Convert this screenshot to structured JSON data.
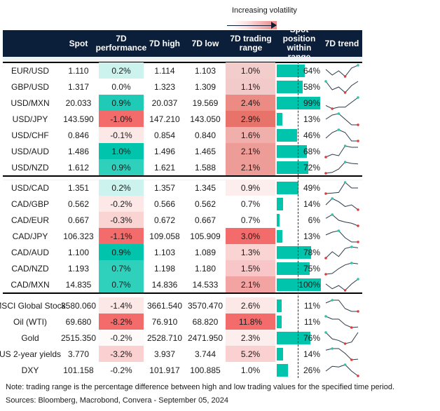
{
  "legend": {
    "label": "Increasing volatility"
  },
  "headers": {
    "spot": "Spot",
    "perf_1": "7D",
    "perf_2": "performance",
    "high": "7D high",
    "low": "7D low",
    "range_1": "7D trading",
    "range_2": "range",
    "pos_1": "Spot position",
    "pos_2": "within range",
    "trend": "7D trend"
  },
  "colors": {
    "header_bg": "#0b1f3a",
    "position_bar": "#00c4ac",
    "max_marker": "#2ec4a8",
    "min_marker": "#e03b3b"
  },
  "groups": [
    {
      "rows": [
        {
          "name": "EUR/USD",
          "spot": "1.110",
          "perf": "0.2%",
          "perf_color": "#cdf3ef",
          "high": "1.114",
          "low": "1.103",
          "range": "1.0%",
          "range_color": "#f3cccc",
          "position": 64,
          "position_label": "64%",
          "trend": [
            35,
            15,
            30,
            10,
            40,
            50
          ]
        },
        {
          "name": "GBP/USD",
          "spot": "1.317",
          "perf": "0.0%",
          "perf_color": "#ffffff",
          "high": "1.323",
          "low": "1.309",
          "range": "1.1%",
          "range_color": "#f3caca",
          "position": 58,
          "position_label": "58%",
          "trend": [
            50,
            20,
            30,
            10,
            35,
            50
          ]
        },
        {
          "name": "USD/MXN",
          "spot": "20.033",
          "perf": "0.9%",
          "perf_color": "#1fcbb6",
          "high": "20.037",
          "low": "19.569",
          "range": "2.4%",
          "range_color": "#ec8a84",
          "position": 99,
          "position_label": "99%",
          "trend": [
            20,
            10,
            15,
            15,
            30,
            45
          ]
        },
        {
          "name": "USD/JPY",
          "spot": "143.590",
          "perf": "-1.0%",
          "perf_color": "#f46b6b",
          "high": "147.210",
          "low": "143.050",
          "range": "2.9%",
          "range_color": "#e8736b",
          "position": 13,
          "position_label": "13%",
          "trend": [
            30,
            45,
            50,
            30,
            10,
            10
          ]
        },
        {
          "name": "USD/CHF",
          "spot": "0.846",
          "perf": "-0.1%",
          "perf_color": "#fde8e8",
          "high": "0.854",
          "low": "0.840",
          "range": "1.6%",
          "range_color": "#f0afab",
          "position": 46,
          "position_label": "46%",
          "trend": [
            20,
            40,
            50,
            40,
            10,
            10
          ]
        },
        {
          "name": "USD/AUD",
          "spot": "1.486",
          "perf": "1.0%",
          "perf_color": "#00c4ac",
          "high": "1.496",
          "low": "1.465",
          "range": "2.1%",
          "range_color": "#ee9c97",
          "position": 68,
          "position_label": "68%",
          "trend": [
            10,
            20,
            15,
            50,
            45,
            45
          ]
        },
        {
          "name": "USD/NZD",
          "spot": "1.612",
          "perf": "0.9%",
          "perf_color": "#2fd1bd",
          "high": "1.621",
          "low": "1.588",
          "range": "2.1%",
          "range_color": "#ee9c97",
          "position": 72,
          "position_label": "72%",
          "trend": [
            5,
            8,
            20,
            45,
            40,
            38
          ]
        }
      ]
    },
    {
      "rows": [
        {
          "name": "USD/CAD",
          "spot": "1.351",
          "perf": "0.2%",
          "perf_color": "#cdf3ef",
          "high": "1.357",
          "low": "1.345",
          "range": "0.9%",
          "range_color": "#fdeeee",
          "position": 49,
          "position_label": "49%",
          "trend": [
            10,
            12,
            14,
            50,
            30,
            30
          ]
        },
        {
          "name": "CAD/GBP",
          "spot": "0.562",
          "perf": "-0.2%",
          "perf_color": "#fde8e8",
          "high": "0.566",
          "low": "0.562",
          "range": "0.7%",
          "range_color": "#ffffff",
          "position": 14,
          "position_label": "14%",
          "trend": [
            30,
            50,
            40,
            25,
            30,
            15
          ]
        },
        {
          "name": "CAD/EUR",
          "spot": "0.667",
          "perf": "-0.3%",
          "perf_color": "#fad3d3",
          "high": "0.672",
          "low": "0.667",
          "range": "0.7%",
          "range_color": "#ffffff",
          "position": 6,
          "position_label": "6%",
          "trend": [
            35,
            45,
            30,
            25,
            22,
            15
          ]
        },
        {
          "name": "CAD/JPY",
          "spot": "106.323",
          "perf": "-1.1%",
          "perf_color": "#f46b6b",
          "high": "109.058",
          "low": "105.909",
          "range": "3.0%",
          "range_color": "#f46b6b",
          "position": 13,
          "position_label": "13%",
          "trend": [
            30,
            40,
            45,
            20,
            5,
            5
          ]
        },
        {
          "name": "CAD/AUD",
          "spot": "1.100",
          "perf": "0.9%",
          "perf_color": "#00c4ac",
          "high": "1.103",
          "low": "1.089",
          "range": "1.3%",
          "range_color": "#fad3d3",
          "position": 78,
          "position_label": "78%",
          "trend": [
            10,
            30,
            15,
            40,
            45,
            42
          ]
        },
        {
          "name": "CAD/NZD",
          "spot": "1.193",
          "perf": "0.7%",
          "perf_color": "#2fd1bd",
          "high": "1.198",
          "low": "1.180",
          "range": "1.5%",
          "range_color": "#f8c6c6",
          "position": 75,
          "position_label": "75%",
          "trend": [
            10,
            12,
            25,
            35,
            40,
            38
          ]
        },
        {
          "name": "CAD/MXN",
          "spot": "14.835",
          "perf": "0.7%",
          "perf_color": "#2fd1bd",
          "high": "14.836",
          "low": "14.533",
          "range": "2.1%",
          "range_color": "#f4a3a3",
          "position": 100,
          "position_label": "100%",
          "trend": [
            30,
            15,
            25,
            10,
            30,
            45
          ]
        }
      ]
    },
    {
      "rows": [
        {
          "name": "MSCI Global Stock",
          "spot": "3580.060",
          "perf": "-1.4%",
          "perf_color": "#fde8e8",
          "high": "3661.540",
          "low": "3570.470",
          "range": "2.6%",
          "range_color": "#fde8e8",
          "position": 11,
          "position_label": "11%",
          "trend": [
            40,
            50,
            50,
            20,
            10,
            10
          ]
        },
        {
          "name": "Oil (WTI)",
          "spot": "69.680",
          "perf": "-8.2%",
          "perf_color": "#f46b6b",
          "high": "76.910",
          "low": "68.820",
          "range": "11.8%",
          "range_color": "#f46b6b",
          "position": 11,
          "position_label": "11%",
          "trend": [
            50,
            40,
            40,
            20,
            10,
            12
          ]
        },
        {
          "name": "Gold",
          "spot": "2515.350",
          "perf": "-0.2%",
          "perf_color": "#fffafa",
          "high": "2528.710",
          "low": "2471.950",
          "range": "2.3%",
          "range_color": "#fdeeee",
          "position": 76,
          "position_label": "76%",
          "trend": [
            50,
            30,
            25,
            15,
            20,
            50
          ]
        },
        {
          "name": "US 2-year yields",
          "spot": "3.770",
          "perf": "-3.2%",
          "perf_color": "#fad0d0",
          "high": "3.937",
          "low": "3.744",
          "range": "5.2%",
          "range_color": "#fad0d0",
          "position": 14,
          "position_label": "14%",
          "trend": [
            40,
            45,
            45,
            30,
            10,
            12
          ]
        },
        {
          "name": "DXY",
          "spot": "101.158",
          "perf": "-0.2%",
          "perf_color": "#ffffff",
          "high": "101.917",
          "low": "100.885",
          "range": "1.0%",
          "range_color": "#ffffff",
          "position": 26,
          "position_label": "26%",
          "trend": [
            20,
            35,
            33,
            40,
            20,
            5
          ]
        }
      ]
    }
  ],
  "footer": {
    "note": "Note: trading range is the percentage difference between high and low trading values for the specified time period.",
    "sources": "Sources: Bloomberg, Macrobond, Convera - September 05, 2024"
  }
}
